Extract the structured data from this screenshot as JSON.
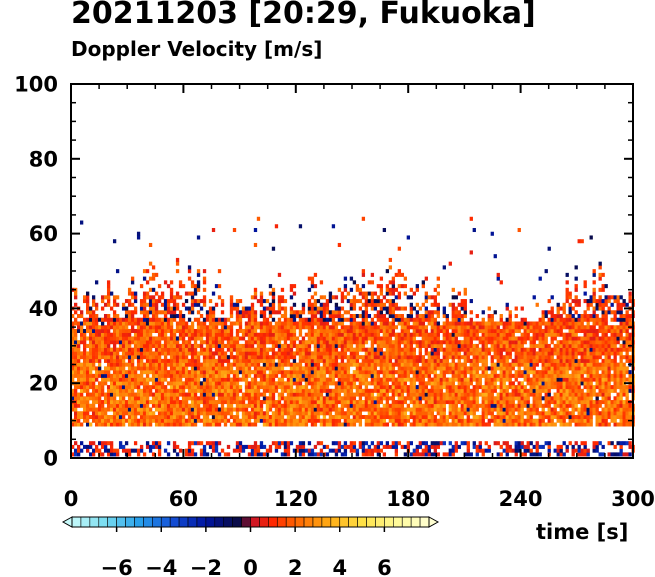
{
  "chart_data": {
    "type": "heatmap",
    "title": "20211203 [20:29, Fukuoka]",
    "subtitle": "Doppler Velocity [m/s]",
    "xlabel": "time [s]",
    "ylabel": "",
    "xlim": [
      0,
      300
    ],
    "ylim": [
      0,
      100
    ],
    "xticks": [
      "0",
      "60",
      "120",
      "180",
      "240",
      "300"
    ],
    "yticks": [
      "0",
      "20",
      "40",
      "60",
      "80",
      "100"
    ],
    "colorbar": {
      "vmin": -8,
      "vmax": 8,
      "step": 0.4,
      "ticks": [
        "−6",
        "−4",
        "−2",
        "0",
        "2",
        "4",
        "6"
      ],
      "tick_values": [
        -6,
        -4,
        -2,
        0,
        2,
        4,
        6
      ]
    },
    "series": [
      {
        "name": "",
        "description_values": {
          "dominant_velocity_range": [
            0.5,
            3.0
          ],
          "dense_echo_height_range": [
            8,
            36
          ],
          "sparse_echo_max_height": 64,
          "no_data_band": [
            4,
            8
          ],
          "surface_band": [
            1,
            4
          ]
        }
      }
    ],
    "echo_top_profile": {
      "t": [
        0,
        20,
        40,
        60,
        80,
        100,
        120,
        140,
        160,
        180,
        200,
        220,
        240,
        260,
        280,
        300
      ],
      "top": [
        45,
        44,
        48,
        49,
        42,
        45,
        43,
        47,
        49,
        46,
        44,
        38,
        37,
        45,
        47,
        46
      ]
    }
  }
}
